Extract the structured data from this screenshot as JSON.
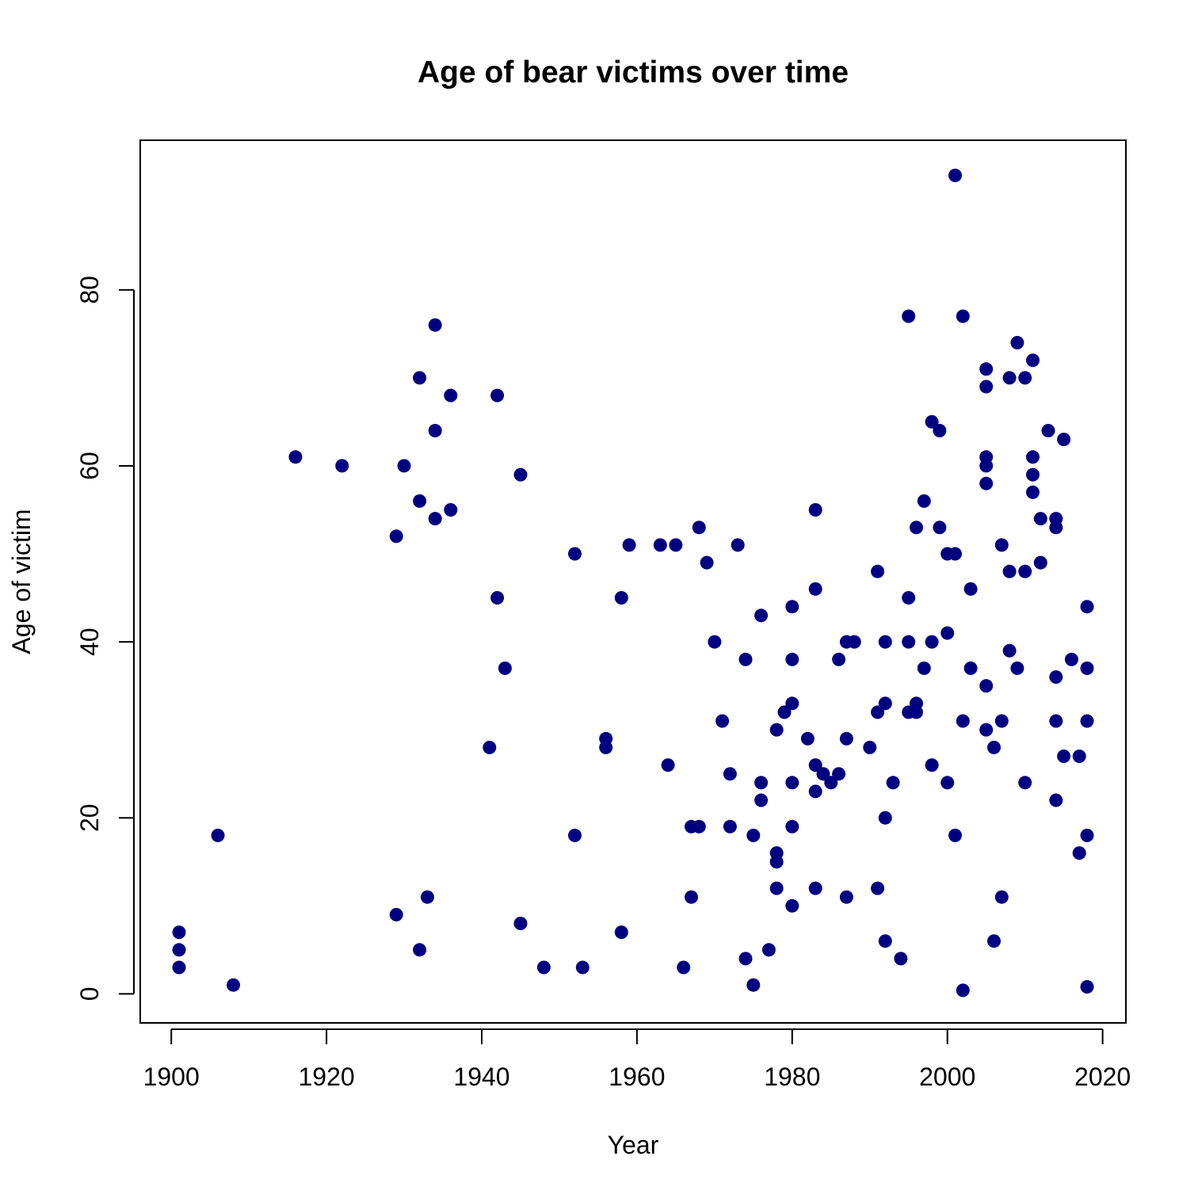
{
  "chart_data": {
    "type": "scatter",
    "title": "Age of bear victims over time",
    "xlabel": "Year",
    "ylabel": "Age of victim",
    "xlim": [
      1896,
      2023
    ],
    "ylim": [
      -3.3,
      97
    ],
    "x_ticks": [
      1900,
      1920,
      1940,
      1960,
      1980,
      2000,
      2020
    ],
    "y_ticks": [
      0,
      20,
      40,
      60,
      80
    ],
    "grid": false,
    "legend": "none",
    "point_color": "#000080",
    "points": [
      [
        1901,
        7
      ],
      [
        1901,
        5
      ],
      [
        1901,
        3
      ],
      [
        1906,
        18
      ],
      [
        1908,
        1
      ],
      [
        1916,
        61
      ],
      [
        1922,
        60
      ],
      [
        1929,
        52
      ],
      [
        1929,
        9
      ],
      [
        1930,
        60
      ],
      [
        1932,
        70
      ],
      [
        1932,
        56
      ],
      [
        1932,
        5
      ],
      [
        1933,
        11
      ],
      [
        1934,
        76
      ],
      [
        1934,
        64
      ],
      [
        1934,
        54
      ],
      [
        1936,
        68
      ],
      [
        1936,
        55
      ],
      [
        1941,
        28
      ],
      [
        1942,
        68
      ],
      [
        1942,
        45
      ],
      [
        1943,
        37
      ],
      [
        1945,
        59
      ],
      [
        1945,
        8
      ],
      [
        1948,
        3
      ],
      [
        1952,
        50
      ],
      [
        1952,
        18
      ],
      [
        1953,
        3
      ],
      [
        1956,
        29
      ],
      [
        1956,
        28
      ],
      [
        1958,
        45
      ],
      [
        1958,
        7
      ],
      [
        1959,
        51
      ],
      [
        1963,
        51
      ],
      [
        1964,
        26
      ],
      [
        1965,
        51
      ],
      [
        1966,
        3
      ],
      [
        1967,
        19
      ],
      [
        1967,
        11
      ],
      [
        1968,
        53
      ],
      [
        1968,
        19
      ],
      [
        1969,
        49
      ],
      [
        1970,
        40
      ],
      [
        1971,
        31
      ],
      [
        1972,
        25
      ],
      [
        1972,
        19
      ],
      [
        1973,
        51
      ],
      [
        1974,
        38
      ],
      [
        1974,
        4
      ],
      [
        1975,
        18
      ],
      [
        1975,
        1
      ],
      [
        1976,
        43
      ],
      [
        1976,
        24
      ],
      [
        1976,
        22
      ],
      [
        1977,
        5
      ],
      [
        1978,
        30
      ],
      [
        1978,
        16
      ],
      [
        1978,
        15
      ],
      [
        1978,
        12
      ],
      [
        1979,
        32
      ],
      [
        1980,
        44
      ],
      [
        1980,
        38
      ],
      [
        1980,
        33
      ],
      [
        1980,
        24
      ],
      [
        1980,
        19
      ],
      [
        1980,
        10
      ],
      [
        1982,
        29
      ],
      [
        1983,
        55
      ],
      [
        1983,
        46
      ],
      [
        1983,
        26
      ],
      [
        1983,
        23
      ],
      [
        1983,
        12
      ],
      [
        1984,
        25
      ],
      [
        1985,
        24
      ],
      [
        1986,
        38
      ],
      [
        1986,
        25
      ],
      [
        1987,
        40
      ],
      [
        1987,
        29
      ],
      [
        1987,
        11
      ],
      [
        1988,
        40
      ],
      [
        1990,
        28
      ],
      [
        1991,
        48
      ],
      [
        1991,
        32
      ],
      [
        1991,
        12
      ],
      [
        1992,
        40
      ],
      [
        1992,
        33
      ],
      [
        1992,
        20
      ],
      [
        1992,
        6
      ],
      [
        1993,
        24
      ],
      [
        1994,
        4
      ],
      [
        1995,
        77
      ],
      [
        1995,
        45
      ],
      [
        1995,
        40
      ],
      [
        1995,
        32
      ],
      [
        1996,
        53
      ],
      [
        1996,
        33
      ],
      [
        1996,
        32
      ],
      [
        1997,
        56
      ],
      [
        1997,
        37
      ],
      [
        1998,
        65
      ],
      [
        1998,
        40
      ],
      [
        1998,
        26
      ],
      [
        1999,
        64
      ],
      [
        1999,
        53
      ],
      [
        2000,
        50
      ],
      [
        2000,
        41
      ],
      [
        2000,
        24
      ],
      [
        2001,
        93
      ],
      [
        2001,
        50
      ],
      [
        2001,
        18
      ],
      [
        2002,
        77
      ],
      [
        2002,
        31
      ],
      [
        2002,
        0.4
      ],
      [
        2003,
        46
      ],
      [
        2003,
        37
      ],
      [
        2005,
        71
      ],
      [
        2005,
        69
      ],
      [
        2005,
        61
      ],
      [
        2005,
        60
      ],
      [
        2005,
        58
      ],
      [
        2005,
        35
      ],
      [
        2005,
        30
      ],
      [
        2006,
        28
      ],
      [
        2006,
        6
      ],
      [
        2007,
        51
      ],
      [
        2007,
        31
      ],
      [
        2007,
        11
      ],
      [
        2008,
        70
      ],
      [
        2008,
        48
      ],
      [
        2008,
        39
      ],
      [
        2009,
        74
      ],
      [
        2009,
        37
      ],
      [
        2010,
        70
      ],
      [
        2010,
        48
      ],
      [
        2010,
        24
      ],
      [
        2011,
        72
      ],
      [
        2011,
        61
      ],
      [
        2011,
        59
      ],
      [
        2011,
        57
      ],
      [
        2012,
        54
      ],
      [
        2012,
        49
      ],
      [
        2013,
        64
      ],
      [
        2014,
        54
      ],
      [
        2014,
        53
      ],
      [
        2014,
        36
      ],
      [
        2014,
        31
      ],
      [
        2014,
        22
      ],
      [
        2015,
        63
      ],
      [
        2015,
        27
      ],
      [
        2016,
        38
      ],
      [
        2017,
        27
      ],
      [
        2017,
        16
      ],
      [
        2018,
        44
      ],
      [
        2018,
        37
      ],
      [
        2018,
        31
      ],
      [
        2018,
        18
      ],
      [
        2018,
        0.8
      ]
    ]
  }
}
